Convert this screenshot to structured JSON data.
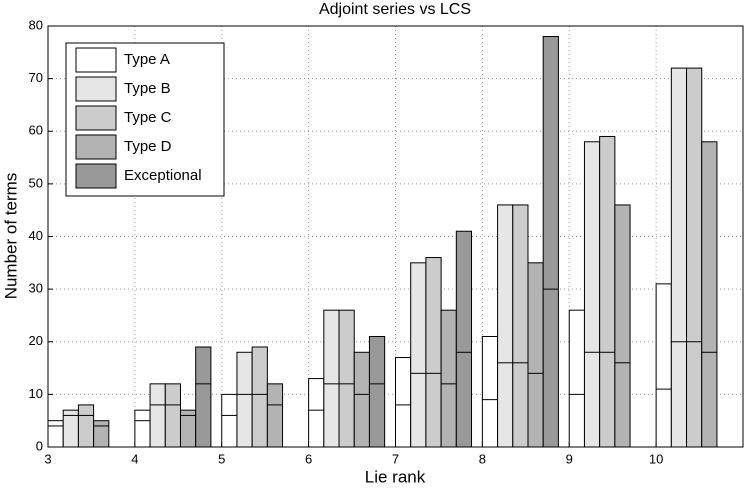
{
  "chart_data": {
    "type": "bar",
    "title": "Adjoint series vs LCS",
    "x_label": "Lie rank",
    "y_label": "Number of terms",
    "categories": [
      3,
      4,
      5,
      6,
      7,
      8,
      9,
      10
    ],
    "xlim": [
      3,
      11
    ],
    "ylim": [
      0,
      80
    ],
    "yticks": [
      0,
      10,
      20,
      30,
      40,
      50,
      60,
      70,
      80
    ],
    "grid": true,
    "legend": "upper-left",
    "series": [
      {
        "name": "Type A",
        "color": "#ffffff",
        "values": [
          5,
          7,
          10,
          13,
          17,
          21,
          26,
          31
        ],
        "inner_values": [
          4,
          5,
          6,
          7,
          8,
          9,
          10,
          11
        ]
      },
      {
        "name": "Type B",
        "color": "#e6e6e6",
        "values": [
          7,
          12,
          18,
          26,
          35,
          46,
          58,
          72
        ],
        "inner_values": [
          6,
          8,
          10,
          12,
          14,
          16,
          18,
          20
        ]
      },
      {
        "name": "Type C",
        "color": "#cccccc",
        "values": [
          8,
          12,
          19,
          26,
          36,
          46,
          59,
          72
        ],
        "inner_values": [
          6,
          8,
          10,
          12,
          14,
          16,
          18,
          20
        ]
      },
      {
        "name": "Type D",
        "color": "#b3b3b3",
        "values": [
          5,
          7,
          12,
          18,
          26,
          35,
          46,
          58
        ],
        "inner_values": [
          4,
          6,
          8,
          10,
          12,
          14,
          16,
          18
        ]
      },
      {
        "name": "Exceptional",
        "color": "#999999",
        "values": [
          null,
          19,
          null,
          21,
          41,
          78,
          null,
          null
        ],
        "inner_values": [
          null,
          12,
          null,
          12,
          18,
          30,
          null,
          null
        ]
      }
    ]
  }
}
